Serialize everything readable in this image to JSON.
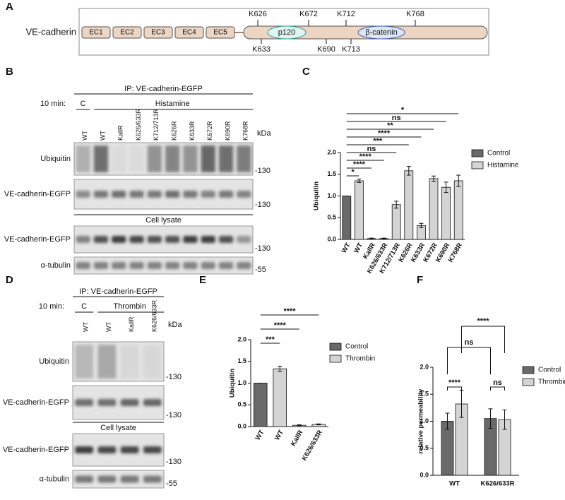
{
  "panel_labels": [
    "A",
    "B",
    "C",
    "D",
    "E",
    "F"
  ],
  "diagram": {
    "protein": "VE-cadherin",
    "domains": [
      "EC1",
      "EC2",
      "EC3",
      "EC4",
      "EC5"
    ],
    "binders": [
      "p120",
      "β-catenin"
    ],
    "sites_above": [
      "K626",
      "K672",
      "K712",
      "K768"
    ],
    "sites_below": [
      "K633",
      "K690",
      "K713"
    ]
  },
  "blot_b": {
    "ip": "IP: VE-cadherin-EGFP",
    "time_label": "10 min:",
    "conditions": [
      "C",
      "Histamine"
    ],
    "lanes": [
      "WT",
      "WT",
      "KallR",
      "K626/633R",
      "K712/713R",
      "K626R",
      "K633R",
      "K672R",
      "K690R",
      "K768R"
    ],
    "kda": "kDa",
    "rows": [
      {
        "label": "Ubiquitin",
        "marker": "-130"
      },
      {
        "label": "VE-cadherin-EGFP",
        "marker": "-130"
      },
      {
        "label": "VE-cadherin-EGFP",
        "marker": "-130"
      },
      {
        "label": "α-tubulin",
        "marker": "-55"
      }
    ],
    "section": "Cell lysate"
  },
  "blot_d": {
    "ip": "IP: VE-cadherin-EGFP",
    "time_label": "10 min:",
    "conditions": [
      "C",
      "Thrombin"
    ],
    "lanes": [
      "WT",
      "WT",
      "KallR",
      "K626/633R"
    ],
    "kda": "kDa",
    "rows": [
      {
        "label": "Ubiquitin",
        "marker": "-130"
      },
      {
        "label": "VE-cadherin-EGFP",
        "marker": "-130"
      },
      {
        "label": "VE-cadherin-EGFP",
        "marker": "-130"
      },
      {
        "label": "α-tubulin",
        "marker": "-55"
      }
    ],
    "section": "Cell lysate"
  },
  "chart_data": [
    {
      "type": "bar",
      "ylabel": "Ubiquitin",
      "categories": [
        "WT",
        "WT",
        "KallR",
        "K626/633R",
        "K712/713R",
        "K626R",
        "K633R",
        "K672R",
        "K690R",
        "K768R"
      ],
      "series": [
        {
          "name": "Control",
          "color": "#696969",
          "values": [
            1.0,
            null,
            null,
            null,
            null,
            null,
            null,
            null,
            null,
            null
          ],
          "errors": [
            0,
            null,
            null,
            null,
            null,
            null,
            null,
            null,
            null,
            null
          ]
        },
        {
          "name": "Histamine",
          "color": "#d4d4d4",
          "values": [
            null,
            1.35,
            0.02,
            0.02,
            0.8,
            1.58,
            0.32,
            1.4,
            1.2,
            1.35
          ],
          "errors": [
            null,
            0.04,
            0.01,
            0.01,
            0.08,
            0.1,
            0.05,
            0.06,
            0.12,
            0.13
          ]
        }
      ],
      "ylim": [
        0,
        2.0
      ],
      "yticks": [
        {
          "value": 0,
          "label": "0.0"
        },
        {
          "value": 0.5,
          "label": "0.5"
        },
        {
          "value": 1.0,
          "label": "1.0"
        },
        {
          "value": 1.5,
          "label": "1.5"
        },
        {
          "value": 2.0,
          "label": "2.0"
        }
      ],
      "annotations": [
        "*",
        "****",
        "****",
        "ns",
        "***",
        "****",
        "**",
        "ns",
        "*"
      ],
      "legend": "right"
    },
    {
      "type": "bar",
      "ylabel": "Ubiquitin",
      "categories": [
        "WT",
        "WT",
        "KallR",
        "K626/633R"
      ],
      "series": [
        {
          "name": "Control",
          "color": "#696969",
          "values": [
            1.0,
            null,
            null,
            null
          ],
          "errors": [
            0,
            null,
            null,
            null
          ]
        },
        {
          "name": "Thrombin",
          "color": "#d4d4d4",
          "values": [
            null,
            1.33,
            0.03,
            0.05
          ],
          "errors": [
            null,
            0.06,
            0.01,
            0.01
          ]
        }
      ],
      "ylim": [
        0,
        2.0
      ],
      "yticks": [
        {
          "value": 0,
          "label": "0.0"
        },
        {
          "value": 0.5,
          "label": "0.5"
        },
        {
          "value": 1.0,
          "label": "1.0"
        },
        {
          "value": 1.5,
          "label": "1.5"
        },
        {
          "value": 2.0,
          "label": "2.0"
        }
      ],
      "annotations": [
        "***",
        "****",
        "****"
      ],
      "legend": "right"
    },
    {
      "type": "bar",
      "ylabel": "relative permeability",
      "categories": [
        "WT",
        "K626/633R"
      ],
      "series": [
        {
          "name": "Control",
          "color": "#696969",
          "values": [
            1.0,
            1.05
          ],
          "errors": [
            0.15,
            0.18
          ]
        },
        {
          "name": "Thrombin",
          "color": "#d4d4d4",
          "values": [
            1.32,
            1.03
          ],
          "errors": [
            0.25,
            0.18
          ]
        }
      ],
      "ylim": [
        0,
        2.0
      ],
      "yticks": [
        {
          "value": 0,
          "label": "0.0"
        },
        {
          "value": 0.5,
          "label": "0.5"
        },
        {
          "value": 1.0,
          "label": "1.0"
        },
        {
          "value": 1.5,
          "label": "1.5"
        },
        {
          "value": 2.0,
          "label": "2.0"
        }
      ],
      "annotations": {
        "within": [
          "****",
          "ns"
        ],
        "between": [
          "ns",
          "****"
        ]
      },
      "legend": "right"
    }
  ]
}
